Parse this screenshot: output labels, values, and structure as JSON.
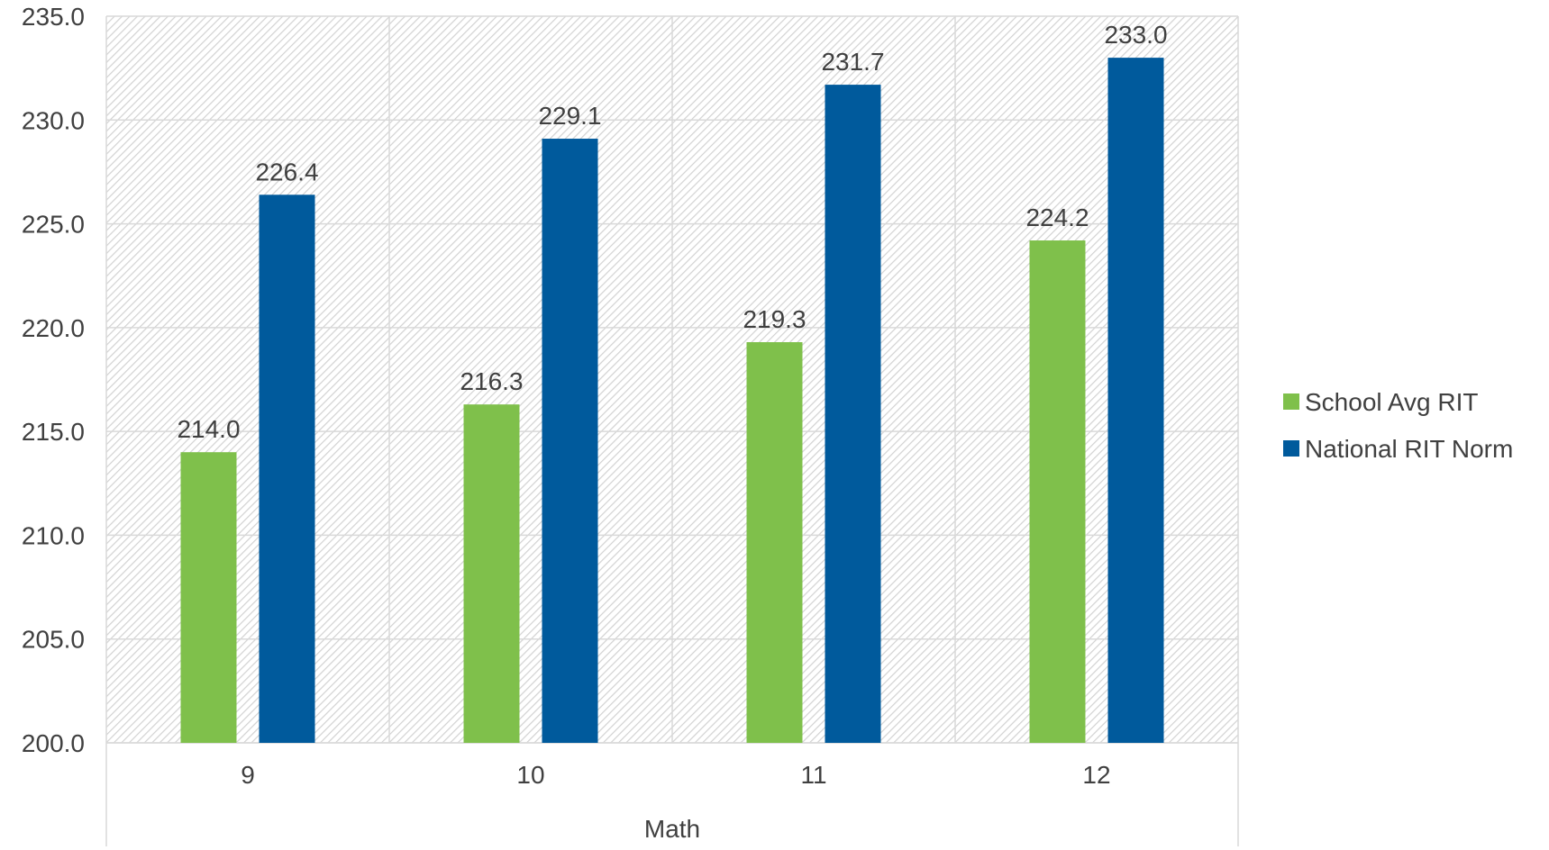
{
  "chart_data": {
    "type": "bar",
    "title": "",
    "xlabel": "Math",
    "ylabel": "",
    "categories": [
      "9",
      "10",
      "11",
      "12"
    ],
    "series": [
      {
        "name": "School Avg RIT",
        "color": "#7fc04b",
        "values": [
          214.0,
          216.3,
          219.3,
          224.2
        ]
      },
      {
        "name": "National RIT Norm",
        "color": "#005a9c",
        "values": [
          226.4,
          229.1,
          231.7,
          233.0
        ]
      }
    ],
    "ylim": [
      200.0,
      235.0
    ],
    "ytick_step": 5.0,
    "y_tick_labels": [
      "200.0",
      "205.0",
      "210.0",
      "215.0",
      "220.0",
      "225.0",
      "230.0",
      "235.0"
    ],
    "data_labels": [
      [
        "214.0",
        "216.3",
        "219.3",
        "224.2"
      ],
      [
        "226.4",
        "229.1",
        "231.7",
        "233.0"
      ]
    ],
    "grid": true,
    "plot_background": "hatched-gray",
    "legend_position": "right"
  }
}
